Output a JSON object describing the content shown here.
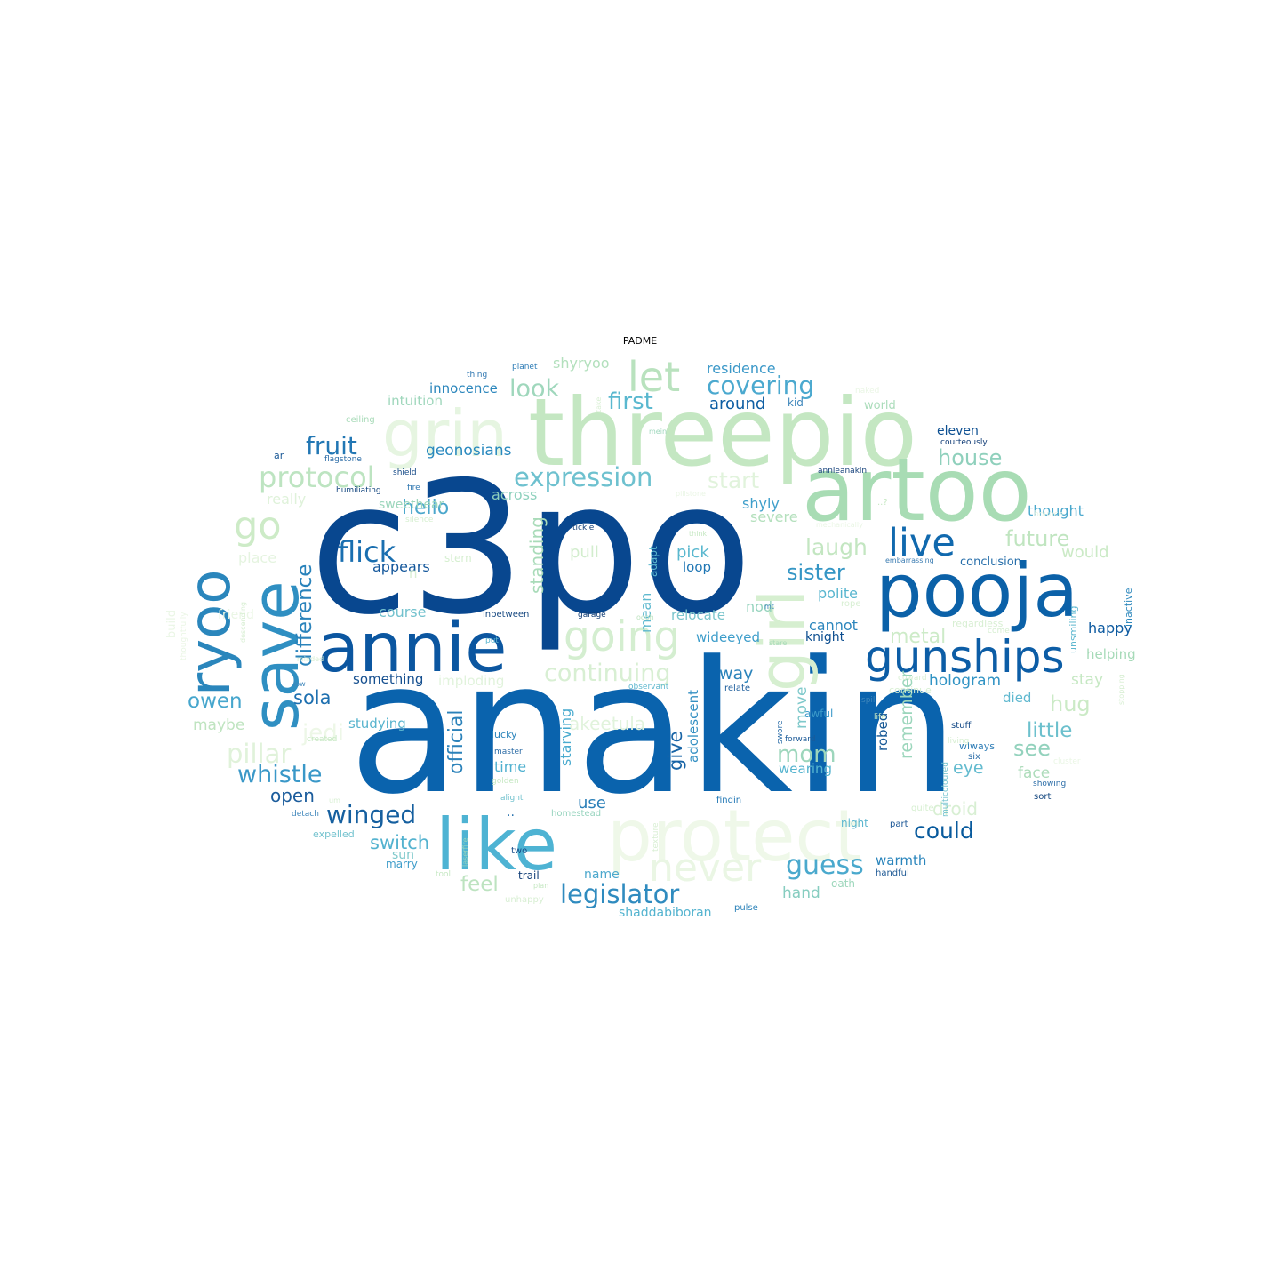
{
  "title": "PADME",
  "words": [
    {
      "text": "c3po",
      "color": "#08478f"
    },
    {
      "text": "anakin",
      "color": "#0a63ad"
    },
    {
      "text": "threepio",
      "color": "#c4e7c2"
    },
    {
      "text": "artoo",
      "color": "#a8dcb4"
    },
    {
      "text": "pooja",
      "color": "#0b61a8"
    },
    {
      "text": "annie",
      "color": "#0b56a0"
    },
    {
      "text": "like",
      "color": "#4eb3d3"
    },
    {
      "text": "protect",
      "color": "#eff8e9"
    },
    {
      "text": "save",
      "color": "#2f8fc2"
    },
    {
      "text": "ryoo",
      "color": "#2a86bc"
    },
    {
      "text": "gunships",
      "color": "#0c5da6"
    },
    {
      "text": "girl",
      "color": "#d6efd0"
    },
    {
      "text": "grin",
      "color": "#e6f5e1"
    },
    {
      "text": "going",
      "color": "#d4eed0"
    },
    {
      "text": "never",
      "color": "#eaf6e4"
    },
    {
      "text": "let",
      "color": "#b9e2be"
    },
    {
      "text": "live",
      "color": "#1169ae"
    },
    {
      "text": "go",
      "color": "#cdebc7"
    },
    {
      "text": "covering",
      "color": "#4ba9cf"
    },
    {
      "text": "expression",
      "color": "#6ec1cf"
    },
    {
      "text": "protocol",
      "color": "#bde4c1"
    },
    {
      "text": "fruit",
      "color": "#2277b4"
    },
    {
      "text": "flick",
      "color": "#1a6fb0"
    },
    {
      "text": "first",
      "color": "#5ab8cf"
    },
    {
      "text": "look",
      "color": "#9fd7bc"
    },
    {
      "text": "continuing",
      "color": "#d8efd3"
    },
    {
      "text": "legislator",
      "color": "#2f8bbf"
    },
    {
      "text": "guess",
      "color": "#4aa9cd"
    },
    {
      "text": "official",
      "color": "#2b82ba"
    },
    {
      "text": "winged",
      "color": "#155f9f"
    },
    {
      "text": "whistle",
      "color": "#3a98c8"
    },
    {
      "text": "difference",
      "color": "#2a83bb"
    },
    {
      "text": "pillar",
      "color": "#e0f2da"
    },
    {
      "text": "mom",
      "color": "#9dd6bc"
    },
    {
      "text": "could",
      "color": "#085a9d"
    },
    {
      "text": "sister",
      "color": "#3596c5"
    },
    {
      "text": "laugh",
      "color": "#c3e6c1"
    },
    {
      "text": "future",
      "color": "#c0e5c0"
    },
    {
      "text": "house",
      "color": "#8fd0bc"
    },
    {
      "text": "hug",
      "color": "#cbeac6"
    },
    {
      "text": "little",
      "color": "#6cc0cd"
    },
    {
      "text": "see",
      "color": "#93d2bd"
    },
    {
      "text": "owen",
      "color": "#46a6cd"
    },
    {
      "text": "sola",
      "color": "#1e70b0"
    },
    {
      "text": "hello",
      "color": "#4ba7cc"
    },
    {
      "text": "standing",
      "color": "#a9dbb9"
    },
    {
      "text": "start",
      "color": "#e1f3dc"
    },
    {
      "text": "give",
      "color": "#1864a6"
    },
    {
      "text": "feel",
      "color": "#bde3c0"
    },
    {
      "text": "switch",
      "color": "#53b2cf"
    },
    {
      "text": "metal",
      "color": "#cdebc8"
    },
    {
      "text": "hologram",
      "color": "#3093c4"
    },
    {
      "text": "residence",
      "color": "#3b98c8"
    },
    {
      "text": "shyryoo",
      "color": "#b3e0bd"
    },
    {
      "text": "innocence",
      "color": "#2b86bc"
    },
    {
      "text": "intuition",
      "color": "#9fd7bc"
    },
    {
      "text": "around",
      "color": "#0e5ea3"
    },
    {
      "text": "geonosians",
      "color": "#2989bf"
    },
    {
      "text": "appears",
      "color": "#14579b"
    },
    {
      "text": "across",
      "color": "#8fd1bd"
    },
    {
      "text": "shyly",
      "color": "#3f9fcb"
    },
    {
      "text": "severe",
      "color": "#b4e0bd"
    },
    {
      "text": "pick",
      "color": "#5ab8cf"
    },
    {
      "text": "pull",
      "color": "#d2edcd"
    },
    {
      "text": "loop",
      "color": "#1f76b4"
    },
    {
      "text": "polite",
      "color": "#59b6cf"
    },
    {
      "text": "cannot",
      "color": "#2c86bd"
    },
    {
      "text": "nod",
      "color": "#95d3bd"
    },
    {
      "text": "relocate",
      "color": "#7ac5cc"
    },
    {
      "text": "wideeyed",
      "color": "#3d9dca"
    },
    {
      "text": "knight",
      "color": "#0b4d8f"
    },
    {
      "text": "way",
      "color": "#2b84bb"
    },
    {
      "text": "mean",
      "color": "#5fb9cf"
    },
    {
      "text": "adapt",
      "color": "#5fb9cf"
    },
    {
      "text": "course",
      "color": "#73c2ce"
    },
    {
      "text": "something",
      "color": "#154f8f"
    },
    {
      "text": "imploding",
      "color": "#e1f3dc"
    },
    {
      "text": "studying",
      "color": "#58b4ce"
    },
    {
      "text": "maybe",
      "color": "#bfe4c0"
    },
    {
      "text": "jedi",
      "color": "#edf7e7"
    },
    {
      "text": "really",
      "color": "#dff2da"
    },
    {
      "text": "place",
      "color": "#e5f4e0"
    },
    {
      "text": "friend",
      "color": "#eaf6e5"
    },
    {
      "text": "open",
      "color": "#1b5c9c"
    },
    {
      "text": "time",
      "color": "#4fb0cf"
    },
    {
      "text": "use",
      "color": "#2a7fb8"
    },
    {
      "text": "sun",
      "color": "#7fc9cb"
    },
    {
      "text": "marry",
      "color": "#3f9dca"
    },
    {
      "text": "name",
      "color": "#4ca8cd"
    },
    {
      "text": "trail",
      "color": "#123f78"
    },
    {
      "text": "two",
      "color": "#154a87"
    },
    {
      "text": "hand",
      "color": "#87cdc0"
    },
    {
      "text": "warmth",
      "color": "#2a85bc"
    },
    {
      "text": "shaddabiboran",
      "color": "#53b3cf"
    },
    {
      "text": "pulse",
      "color": "#2c83ba"
    },
    {
      "text": "oath",
      "color": "#9ed7bc"
    },
    {
      "text": "handful",
      "color": "#1c5894"
    },
    {
      "text": "part",
      "color": "#1a5695"
    },
    {
      "text": "night",
      "color": "#5cb6cf"
    },
    {
      "text": "droid",
      "color": "#d8efd3"
    },
    {
      "text": "face",
      "color": "#aedcbb"
    },
    {
      "text": "eye",
      "color": "#63bbcf"
    },
    {
      "text": "remember",
      "color": "#9cd6bc"
    },
    {
      "text": "robed",
      "color": "#155795"
    },
    {
      "text": "move",
      "color": "#7fc9cb"
    },
    {
      "text": "awful",
      "color": "#3c9ac9"
    },
    {
      "text": "wearing",
      "color": "#55b4cf"
    },
    {
      "text": "adolescent",
      "color": "#3490c3"
    },
    {
      "text": "starving",
      "color": "#4aabcf"
    },
    {
      "text": "akeetula",
      "color": "#e1f3dc"
    },
    {
      "text": "died",
      "color": "#5fb8cf"
    },
    {
      "text": "stay",
      "color": "#c6e8c3"
    },
    {
      "text": "helping",
      "color": "#a6dab8"
    },
    {
      "text": "happy",
      "color": "#0d5aa0"
    },
    {
      "text": "unsmiling",
      "color": "#5db7cf"
    },
    {
      "text": "would",
      "color": "#cbeac6"
    },
    {
      "text": "thought",
      "color": "#4aa8cd"
    },
    {
      "text": "conclusion",
      "color": "#266eaa"
    },
    {
      "text": "eleven",
      "color": "#0c4f91"
    },
    {
      "text": "courteously",
      "color": "#103c76"
    },
    {
      "text": "world",
      "color": "#aadcba"
    },
    {
      "text": "kid",
      "color": "#3e86bb"
    },
    {
      "text": "annieanakin",
      "color": "#16417b"
    },
    {
      "text": "inactive",
      "color": "#2d88bd"
    },
    {
      "text": "regardless",
      "color": "#d8efd3"
    },
    {
      "text": "come",
      "color": "#d5eed0"
    },
    {
      "text": "embarrassing",
      "color": "#3c7db2"
    },
    {
      "text": "..?",
      "color": "#c6e8c3"
    },
    {
      "text": "bounce",
      "color": "#eaf6e5"
    },
    {
      "text": "mechanically",
      "color": "#eaf6e5"
    },
    {
      "text": "naked",
      "color": "#eaf6e5"
    },
    {
      "text": "mein",
      "color": "#9ed7bc"
    },
    {
      "text": "take",
      "color": "#d8efd3"
    },
    {
      "text": "planet",
      "color": "#2d7cb6"
    },
    {
      "text": "thing",
      "color": "#2c75b0"
    },
    {
      "text": "ceiling",
      "color": "#a9dbb9"
    },
    {
      "text": "ar",
      "color": "#1c5a97"
    },
    {
      "text": "flagstone",
      "color": "#2c6ca6"
    },
    {
      "text": "shield",
      "color": "#154a87"
    },
    {
      "text": "humiliating",
      "color": "#13467f"
    },
    {
      "text": "fire",
      "color": "#2c75b0"
    },
    {
      "text": "silence",
      "color": "#d6efd0"
    },
    {
      "text": "tickle",
      "color": "#123e76"
    },
    {
      "text": "think",
      "color": "#c6e8c3"
    },
    {
      "text": "pillstone",
      "color": "#eaf6e5"
    },
    {
      "text": "stern",
      "color": "#d6efd0"
    },
    {
      "text": "inbetween",
      "color": "#14467f"
    },
    {
      "text": "garage",
      "color": "#123e76"
    },
    {
      "text": "oooh",
      "color": "#bee3c0"
    },
    {
      "text": "put",
      "color": "#5db7cf"
    },
    {
      "text": "stare",
      "color": "#a9dbb9"
    },
    {
      "text": "observant",
      "color": "#5fb8cf"
    },
    {
      "text": "relate",
      "color": "#1e5e9c"
    },
    {
      "text": "swore",
      "color": "#2a6ca7"
    },
    {
      "text": "forward",
      "color": "#1c5a97"
    },
    {
      "text": "master",
      "color": "#2c6ca6"
    },
    {
      "text": "lucky",
      "color": "#2a84bb"
    },
    {
      "text": "golden",
      "color": "#c6e8c3"
    },
    {
      "text": "alight",
      "color": "#72c2ce"
    },
    {
      "text": "homestead",
      "color": "#95d3bd"
    },
    {
      "text": "texture",
      "color": "#d8efd3"
    },
    {
      "text": "laserfire",
      "color": "#95d3bd"
    },
    {
      "text": "tool",
      "color": "#c6e8c3"
    },
    {
      "text": "plan",
      "color": "#c6e8c3"
    },
    {
      "text": "unhappy",
      "color": "#d8efd3"
    },
    {
      "text": "expelled",
      "color": "#72c2ce"
    },
    {
      "text": "detach",
      "color": "#3e86bb"
    },
    {
      "text": "um",
      "color": "#d8efd3"
    },
    {
      "text": "created",
      "color": "#c6e8c3"
    },
    {
      "text": "low",
      "color": "#3e86bb"
    },
    {
      "text": "minded",
      "color": "#d8efd3"
    },
    {
      "text": "thoughtfully",
      "color": "#eaf6e5"
    },
    {
      "text": "descending",
      "color": "#d8efd3"
    },
    {
      "text": "build",
      "color": "#eaf6e5"
    },
    {
      "text": "..",
      "color": "#2c75b0"
    },
    {
      "text": "n",
      "color": "#d8efd3"
    },
    {
      "text": "sweethear",
      "color": "#9cd6bc"
    },
    {
      "text": "findin",
      "color": "#1f76b4"
    },
    {
      "text": "showing",
      "color": "#2a6ca7"
    },
    {
      "text": "sort",
      "color": "#13467f"
    },
    {
      "text": "wlways",
      "color": "#2d7cb6"
    },
    {
      "text": "six",
      "color": "#2a6ca7"
    },
    {
      "text": "stuff",
      "color": "#154a87"
    },
    {
      "text": "spill",
      "color": "#3e86bb"
    },
    {
      "text": "life",
      "color": "#c6e8c3"
    },
    {
      "text": "continue",
      "color": "#d8efd3"
    },
    {
      "text": "coward",
      "color": "#d8efd3"
    },
    {
      "text": "cluster",
      "color": "#eaf6e5"
    },
    {
      "text": "living",
      "color": "#d8efd3"
    },
    {
      "text": "quite",
      "color": "#d6efd0"
    },
    {
      "text": "multicoloured",
      "color": "#72c2ce"
    },
    {
      "text": "stopping",
      "color": "#d8efd3"
    },
    {
      "text": "mt",
      "color": "#3e86bb"
    },
    {
      "text": "rope",
      "color": "#d8efd3"
    }
  ]
}
